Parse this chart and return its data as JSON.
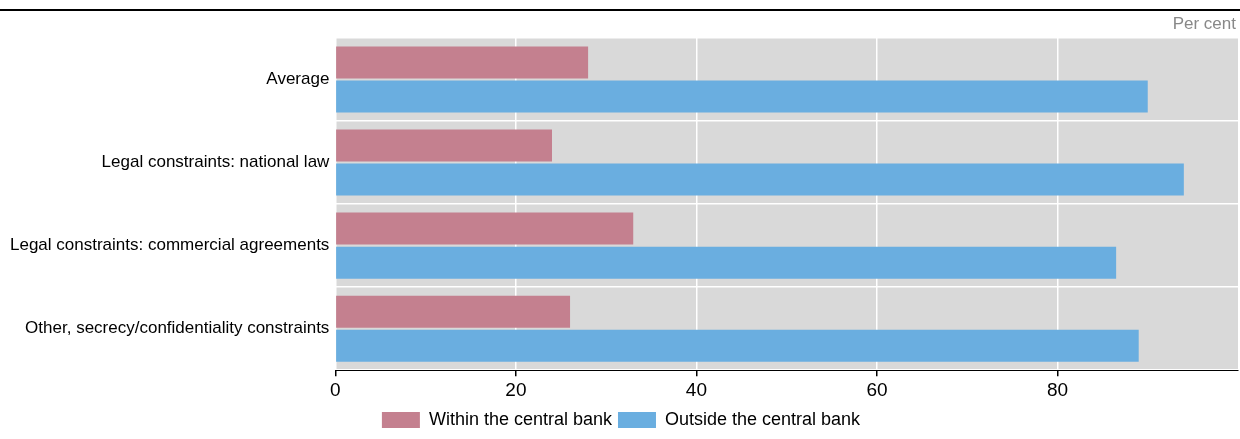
{
  "chart_data": {
    "type": "bar",
    "orientation": "horizontal",
    "xlabel": "Per cent",
    "categories": [
      "Average",
      "Legal constraints: national law",
      "Legal constraints: commercial agreements",
      "Other, secrecy/confidentiality constraints"
    ],
    "series": [
      {
        "name": "Within the central bank",
        "color": "#c4808f",
        "values": [
          28,
          24,
          33,
          26
        ]
      },
      {
        "name": "Outside the central bank",
        "color": "#6aaee0",
        "values": [
          90,
          94,
          86.5,
          89
        ]
      }
    ],
    "xlim": [
      0,
      100
    ],
    "xticks": [
      0,
      20,
      40,
      60,
      80
    ],
    "grid": true,
    "legend": "bottom"
  }
}
